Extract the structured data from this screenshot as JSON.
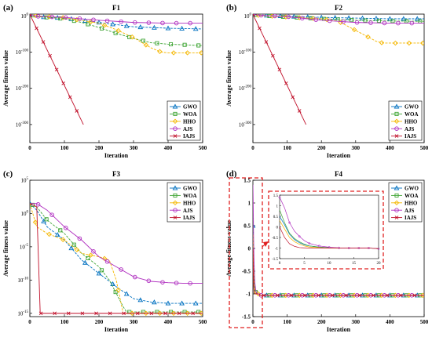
{
  "figure": {
    "ylabel": "Average fitness value",
    "xlabel": "Iteration"
  },
  "legend_entries": [
    {
      "name": "GWO",
      "color": "#0070C0",
      "marker": "triangle"
    },
    {
      "name": "WOA",
      "color": "#3FA535",
      "marker": "square"
    },
    {
      "name": "HHO",
      "color": "#F5B700",
      "marker": "diamond"
    },
    {
      "name": "AJS",
      "color": "#B030C0",
      "marker": "circle"
    },
    {
      "name": "IAJS",
      "color": "#C0102A",
      "marker": "x"
    }
  ],
  "chart_data": [
    {
      "panel": "(a)",
      "title": "F1",
      "type": "line",
      "xlim": [
        0,
        500
      ],
      "xticks": [
        "0",
        "100",
        "200",
        "300",
        "400",
        "500"
      ],
      "yscale": "log",
      "ylim_exp": [
        -350,
        5
      ],
      "yticks": [
        {
          "exp": 0,
          "label": "10^0"
        },
        {
          "exp": -100,
          "label": "10^-100"
        },
        {
          "exp": -200,
          "label": "10^-200"
        },
        {
          "exp": -300,
          "label": "10^-300"
        }
      ],
      "xlabel": "Iteration",
      "ylabel": "Average fitness value",
      "legend": "bottom-right",
      "series": [
        {
          "name": "GWO",
          "x": [
            0,
            20,
            100,
            200,
            300,
            400,
            500
          ],
          "exp": [
            4,
            -2,
            -6,
            -18,
            -30,
            -34,
            -36
          ]
        },
        {
          "name": "WOA",
          "x": [
            0,
            20,
            100,
            150,
            200,
            250,
            300,
            350,
            400,
            450,
            500
          ],
          "exp": [
            4,
            -2,
            -8,
            -18,
            -32,
            -48,
            -62,
            -74,
            -78,
            -80,
            -82
          ]
        },
        {
          "name": "HHO",
          "x": [
            0,
            20,
            100,
            200,
            250,
            300,
            350,
            380,
            400,
            500
          ],
          "exp": [
            4,
            0,
            -5,
            -20,
            -38,
            -60,
            -88,
            -100,
            -102,
            -102
          ]
        },
        {
          "name": "AJS",
          "x": [
            0,
            20,
            100,
            200,
            300,
            400,
            500
          ],
          "exp": [
            4,
            -1,
            -4,
            -12,
            -18,
            -20,
            -20
          ]
        },
        {
          "name": "IAJS",
          "x": [
            0,
            155
          ],
          "exp": [
            4,
            -300
          ]
        }
      ]
    },
    {
      "panel": "(b)",
      "title": "F2",
      "type": "line",
      "xlim": [
        0,
        500
      ],
      "xticks": [
        "0",
        "100",
        "200",
        "300",
        "400",
        "500"
      ],
      "yscale": "log",
      "ylim_exp": [
        -350,
        5
      ],
      "yticks": [
        {
          "exp": 0,
          "label": "10^0"
        },
        {
          "exp": -100,
          "label": "10^-100"
        },
        {
          "exp": -200,
          "label": "10^-200"
        },
        {
          "exp": -300,
          "label": "10^-300"
        }
      ],
      "xlabel": "Iteration",
      "ylabel": "Average fitness value",
      "legend": "bottom-right",
      "series": [
        {
          "name": "GWO",
          "x": [
            0,
            20,
            100,
            200,
            300,
            400,
            500
          ],
          "exp": [
            4,
            2,
            -1,
            -4,
            -6,
            -8,
            -8
          ]
        },
        {
          "name": "WOA",
          "x": [
            0,
            20,
            100,
            200,
            300,
            400,
            500
          ],
          "exp": [
            4,
            1,
            -3,
            -8,
            -12,
            -14,
            -15
          ]
        },
        {
          "name": "HHO",
          "x": [
            0,
            20,
            100,
            200,
            250,
            280,
            320,
            360,
            380,
            500
          ],
          "exp": [
            4,
            1,
            -3,
            -8,
            -15,
            -30,
            -50,
            -70,
            -75,
            -75
          ]
        },
        {
          "name": "AJS",
          "x": [
            0,
            20,
            100,
            200,
            300,
            400,
            500
          ],
          "exp": [
            4,
            2,
            -2,
            -12,
            -18,
            -20,
            -20
          ]
        },
        {
          "name": "IAJS",
          "x": [
            0,
            155
          ],
          "exp": [
            4,
            -300
          ]
        }
      ]
    },
    {
      "panel": "(c)",
      "title": "F3",
      "type": "line",
      "xlim": [
        0,
        500
      ],
      "xticks": [
        "0",
        "100",
        "200",
        "300",
        "400",
        "500"
      ],
      "yscale": "log",
      "ylim_exp": [
        -15.5,
        5
      ],
      "yticks": [
        {
          "exp": 5,
          "label": "10^5"
        },
        {
          "exp": 0,
          "label": "10^0"
        },
        {
          "exp": -5,
          "label": "10^-5"
        },
        {
          "exp": -10,
          "label": "10^-10"
        },
        {
          "exp": -15,
          "label": "10^-15"
        }
      ],
      "xlabel": "Iteration",
      "ylabel": "Average fitness value",
      "legend": "top-right",
      "series": [
        {
          "name": "GWO",
          "x": [
            0,
            20,
            50,
            100,
            150,
            200,
            250,
            300,
            350,
            400,
            450,
            500
          ],
          "exp": [
            1.5,
            0.5,
            -2,
            -4,
            -7,
            -9,
            -11,
            -12.8,
            -13.3,
            -13.5,
            -13.5,
            -13.5
          ]
        },
        {
          "name": "WOA",
          "x": [
            0,
            20,
            50,
            100,
            150,
            200,
            230,
            250,
            270,
            280,
            300,
            500
          ],
          "exp": [
            1.5,
            1,
            -1,
            -3,
            -6,
            -8,
            -10,
            -12,
            -14,
            -14.8,
            -14.8,
            -14.8
          ]
        },
        {
          "name": "HHO",
          "x": [
            0,
            20,
            50,
            100,
            150,
            200,
            230,
            250,
            270,
            500
          ],
          "exp": [
            1.5,
            -2,
            -3,
            -4,
            -6,
            -6.5,
            -7,
            -10,
            -15,
            -15
          ]
        },
        {
          "name": "AJS",
          "x": [
            0,
            20,
            50,
            100,
            150,
            200,
            250,
            300,
            350,
            400,
            450,
            500
          ],
          "exp": [
            1.5,
            1.5,
            0.5,
            -2,
            -4,
            -6.5,
            -8,
            -9.5,
            -10.2,
            -10.4,
            -10.5,
            -10.5
          ]
        },
        {
          "name": "IAJS",
          "x": [
            0,
            20,
            30,
            500
          ],
          "exp": [
            1.5,
            1,
            -15,
            -15
          ]
        }
      ]
    },
    {
      "panel": "(d)",
      "title": "F4",
      "type": "line",
      "xlim": [
        0,
        500
      ],
      "xticks": [
        "0",
        "100",
        "200",
        "300",
        "400",
        "500"
      ],
      "yscale": "linear",
      "ylim": [
        -1.5,
        1.5
      ],
      "yticks": [
        "-1.5",
        "-1",
        "-0.5",
        "0",
        "0.5",
        "1",
        "1.5"
      ],
      "xlabel": "Iteration",
      "ylabel": "Average fitness value",
      "legend": "top-right",
      "series": [
        {
          "name": "GWO",
          "x": [
            0,
            1,
            2,
            3,
            4,
            5,
            6,
            8,
            10,
            12,
            14,
            16,
            18,
            20,
            500
          ],
          "y": [
            0.5,
            0.1,
            -0.35,
            -0.6,
            -0.75,
            -0.85,
            -0.9,
            -0.95,
            -0.98,
            -1.0,
            -1.0,
            -1.0,
            -1.0,
            -1.0316,
            -1.0316
          ]
        },
        {
          "name": "WOA",
          "x": [
            0,
            1,
            2,
            3,
            4,
            5,
            6,
            8,
            10,
            12,
            14,
            16,
            18,
            20,
            500
          ],
          "y": [
            0.8,
            0.2,
            -0.3,
            -0.55,
            -0.7,
            -0.82,
            -0.9,
            -0.96,
            -0.99,
            -1.0,
            -1.0,
            -1.0,
            -1.0,
            -1.0316,
            -1.0316
          ]
        },
        {
          "name": "HHO",
          "x": [
            0,
            1,
            2,
            3,
            4,
            5,
            6,
            8,
            10,
            12,
            14,
            16,
            18,
            20,
            500
          ],
          "y": [
            0.3,
            -0.1,
            -0.5,
            -0.7,
            -0.82,
            -0.9,
            -0.95,
            -0.98,
            -1.0,
            -1.0,
            -1.0,
            -1.0,
            -1.0,
            -1.0316,
            -1.0316
          ]
        },
        {
          "name": "AJS",
          "x": [
            0,
            1,
            2,
            3,
            4,
            5,
            6,
            8,
            10,
            12,
            14,
            16,
            18,
            20,
            500
          ],
          "y": [
            1.4,
            0.9,
            0.2,
            -0.2,
            -0.45,
            -0.65,
            -0.78,
            -0.9,
            -0.96,
            -0.99,
            -1.0,
            -1.0,
            -1.0,
            -1.0316,
            -1.0316
          ]
        },
        {
          "name": "IAJS",
          "x": [
            0,
            1,
            2,
            3,
            4,
            6,
            8,
            10,
            12,
            14,
            16,
            18,
            20,
            500
          ],
          "y": [
            0.0,
            -0.5,
            -0.8,
            -0.92,
            -0.98,
            -1.0,
            -1.0,
            -1.0,
            -1.0,
            -1.0,
            -1.0,
            -1.0,
            -1.0316,
            -1.0316
          ]
        }
      ],
      "inset": {
        "xlim": [
          0,
          20
        ],
        "xticks": [
          "0",
          "5",
          "10",
          "15",
          "20"
        ],
        "ylim": [
          -1.5,
          1.5
        ],
        "yticks": [
          "-1.5",
          "-1",
          "-0.5",
          "0",
          "0.5",
          "1",
          "1.5"
        ]
      }
    }
  ]
}
